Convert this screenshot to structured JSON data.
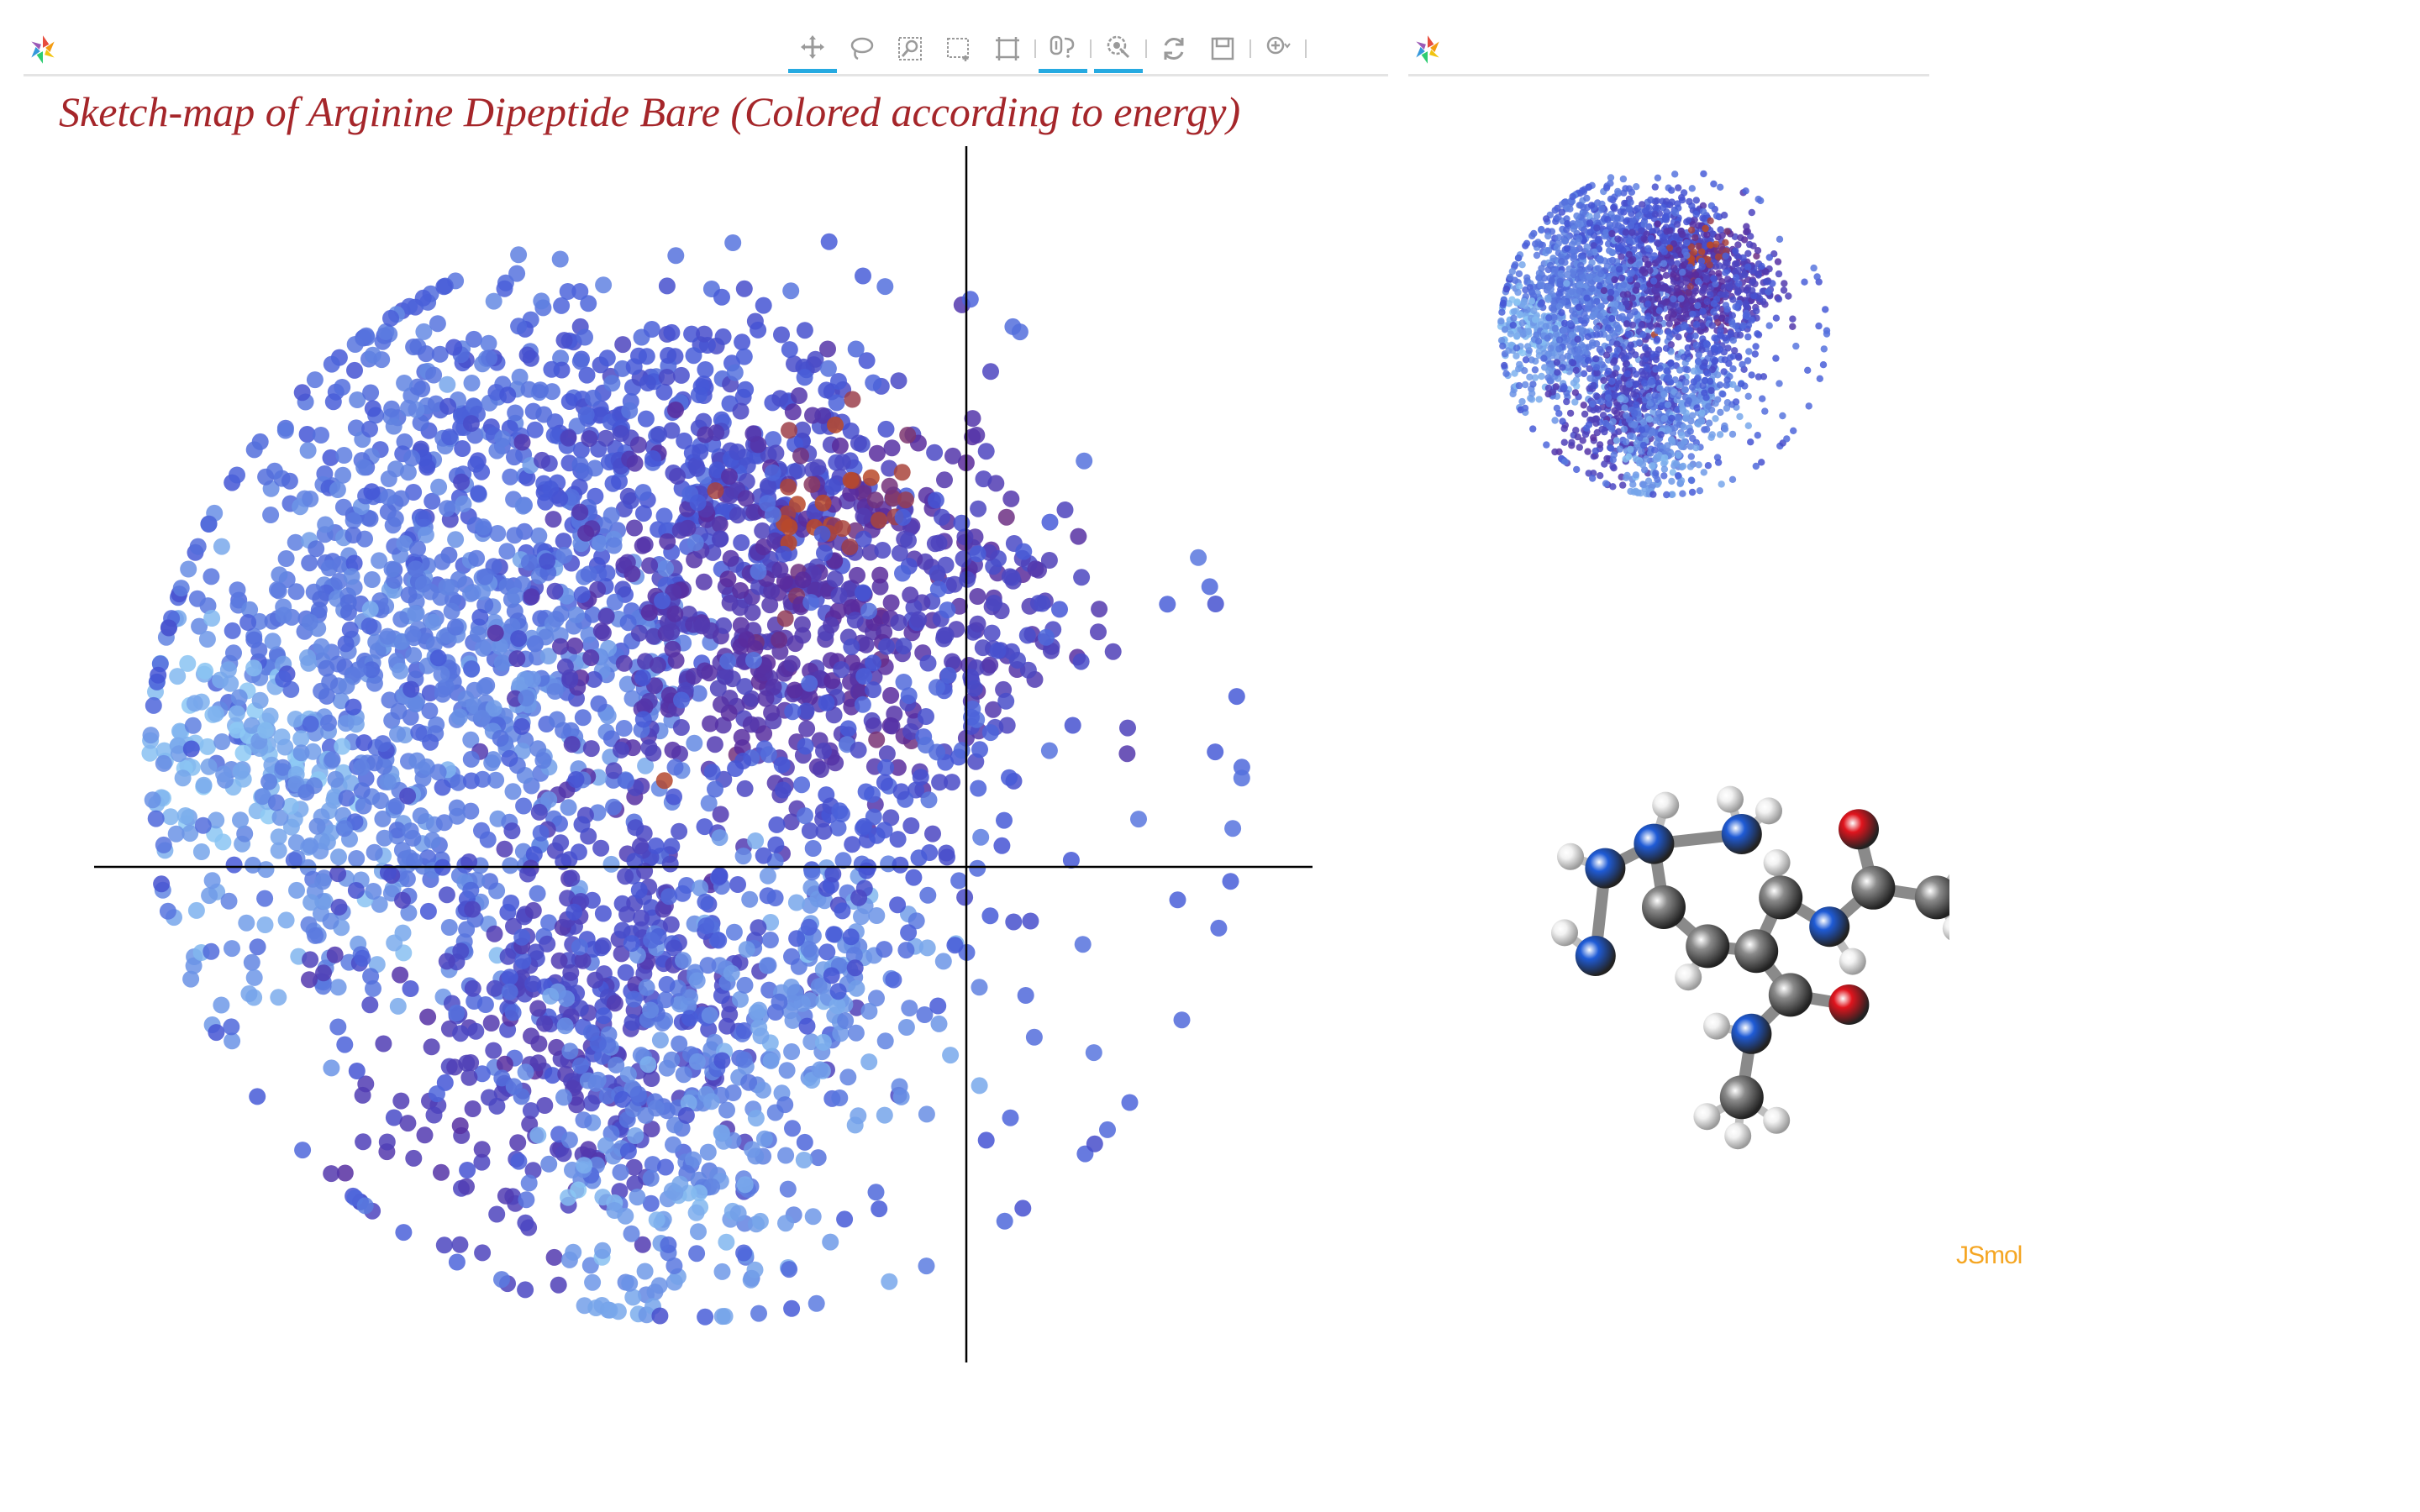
{
  "app": {
    "title": "Sketch-map of Arginine Dipeptide Bare (Colored according to energy)",
    "jsmol_label": "JSmol"
  },
  "toolbar": {
    "tools": [
      {
        "id": "pan",
        "icon": "pan-icon",
        "active": true
      },
      {
        "id": "lasso-select",
        "icon": "lasso-icon",
        "active": false
      },
      {
        "id": "zoom-box",
        "icon": "box-zoom-icon",
        "active": false
      },
      {
        "id": "box-select",
        "icon": "box-select-icon",
        "active": false
      },
      {
        "id": "reset-bounds",
        "icon": "bounds-icon",
        "active": false
      },
      {
        "id": "hover",
        "icon": "hover-icon",
        "active": true
      },
      {
        "id": "tap",
        "icon": "tap-icon",
        "active": true
      },
      {
        "id": "reset",
        "icon": "reset-icon",
        "active": false
      },
      {
        "id": "save",
        "icon": "save-icon",
        "active": false
      },
      {
        "id": "help",
        "icon": "help-icon",
        "active": false
      }
    ]
  },
  "colors": {
    "title": "#a5262a",
    "jsmol": "#f5a623",
    "toolbar_active": "#26aae1",
    "energy_low": "#8ecaf4",
    "energy_mid": "#4456d6",
    "energy_high": "#5a2a9a",
    "energy_peak": "#b8492a",
    "atom_carbon": "#8a8a8a",
    "atom_nitrogen": "#1f5bd6",
    "atom_oxygen": "#e0141d",
    "atom_hydrogen": "#f2f2f2"
  },
  "chart_data": {
    "type": "scatter",
    "title": "Sketch-map of Arginine Dipeptide Bare (Colored according to energy)",
    "xlabel": "",
    "ylabel": "",
    "grid": false,
    "crosshair": true,
    "color_by": "energy",
    "xlim": [
      -1.0,
      1.0
    ],
    "ylim": [
      -1.0,
      1.0
    ],
    "clusters": [
      {
        "cx": -0.45,
        "cy": 0.62,
        "spread": 0.14,
        "count": 180,
        "energy": 0.35
      },
      {
        "cx": -0.15,
        "cy": 0.55,
        "spread": 0.16,
        "count": 220,
        "energy": 0.45
      },
      {
        "cx": 0.12,
        "cy": 0.55,
        "spread": 0.13,
        "count": 160,
        "energy": 0.5
      },
      {
        "cx": -0.62,
        "cy": 0.3,
        "spread": 0.15,
        "count": 170,
        "energy": 0.3
      },
      {
        "cx": -0.45,
        "cy": 0.2,
        "spread": 0.15,
        "count": 190,
        "energy": 0.3
      },
      {
        "cx": -0.22,
        "cy": 0.18,
        "spread": 0.13,
        "count": 150,
        "energy": 0.25
      },
      {
        "cx": 0.05,
        "cy": 0.22,
        "spread": 0.17,
        "count": 230,
        "energy": 0.72
      },
      {
        "cx": 0.28,
        "cy": 0.3,
        "spread": 0.16,
        "count": 210,
        "energy": 0.78
      },
      {
        "cx": 0.48,
        "cy": 0.28,
        "spread": 0.12,
        "count": 110,
        "energy": 0.6
      },
      {
        "cx": 0.25,
        "cy": 0.48,
        "spread": 0.07,
        "count": 30,
        "energy": 0.97
      },
      {
        "cx": -0.82,
        "cy": 0.05,
        "spread": 0.09,
        "count": 90,
        "energy": 0.08
      },
      {
        "cx": -0.7,
        "cy": -0.12,
        "spread": 0.15,
        "count": 140,
        "energy": 0.18
      },
      {
        "cx": -0.45,
        "cy": -0.15,
        "spread": 0.15,
        "count": 150,
        "energy": 0.3
      },
      {
        "cx": -0.15,
        "cy": -0.3,
        "spread": 0.16,
        "count": 200,
        "energy": 0.55
      },
      {
        "cx": -0.3,
        "cy": -0.55,
        "spread": 0.16,
        "count": 170,
        "energy": 0.65
      },
      {
        "cx": 0.0,
        "cy": -0.55,
        "spread": 0.14,
        "count": 150,
        "energy": 0.3
      },
      {
        "cx": 0.22,
        "cy": -0.35,
        "spread": 0.12,
        "count": 120,
        "energy": 0.2
      },
      {
        "cx": -0.05,
        "cy": -0.8,
        "spread": 0.14,
        "count": 90,
        "energy": 0.15
      },
      {
        "cx": 0.3,
        "cy": -0.1,
        "spread": 0.14,
        "count": 100,
        "energy": 0.45
      },
      {
        "cx": 0.0,
        "cy": 0.0,
        "spread": 0.55,
        "count": 260,
        "energy": 0.4
      }
    ]
  },
  "overview_plot": {
    "type": "scatter",
    "color_by": "energy"
  },
  "molecule": {
    "name": "arginine-dipeptide",
    "atoms": [
      {
        "el": "C",
        "x": 0.0,
        "y": 0.0
      },
      {
        "el": "C",
        "x": 0.9,
        "y": -0.8
      },
      {
        "el": "C",
        "x": 1.9,
        "y": -0.9
      },
      {
        "el": "C",
        "x": 2.4,
        "y": 0.2
      },
      {
        "el": "N",
        "x": 1.6,
        "y": 1.5
      },
      {
        "el": "N",
        "x": 3.4,
        "y": -0.4
      },
      {
        "el": "C",
        "x": 4.3,
        "y": 0.4
      },
      {
        "el": "O",
        "x": 4.0,
        "y": 1.6
      },
      {
        "el": "C",
        "x": 5.6,
        "y": 0.2
      },
      {
        "el": "C",
        "x": 2.6,
        "y": -1.8
      },
      {
        "el": "O",
        "x": 3.8,
        "y": -2.0
      },
      {
        "el": "N",
        "x": 1.8,
        "y": -2.6
      },
      {
        "el": "C",
        "x": 1.6,
        "y": -3.9
      },
      {
        "el": "N",
        "x": -0.2,
        "y": 1.3
      },
      {
        "el": "N",
        "x": -1.2,
        "y": 0.8
      },
      {
        "el": "N",
        "x": -1.4,
        "y": -1.0
      }
    ]
  }
}
